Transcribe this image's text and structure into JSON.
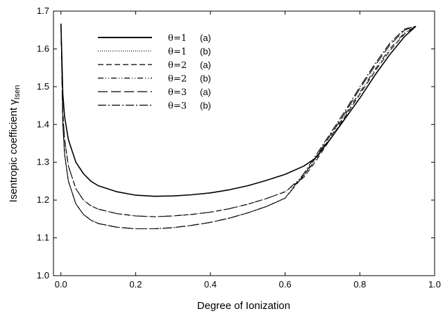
{
  "chart_data": {
    "type": "line",
    "title": "",
    "xlabel": "Degree of Ionization",
    "ylabel": "Isentropic coefficient γ",
    "ylabel_subscript": "Isen",
    "xlim": [
      -0.02,
      1.0
    ],
    "ylim": [
      1.0,
      1.7
    ],
    "xticks": [
      "0.0",
      "0.2",
      "0.4",
      "0.6",
      "0.8",
      "1.0"
    ],
    "yticks": [
      "1.0",
      "1.1",
      "1.2",
      "1.3",
      "1.4",
      "1.5",
      "1.6",
      "1.7"
    ],
    "grid": false,
    "legend_position": "top-left",
    "series": [
      {
        "theta": "θ=1",
        "case": "(a)",
        "dash": "",
        "x": [
          0.0,
          0.005,
          0.01,
          0.02,
          0.04,
          0.06,
          0.08,
          0.1,
          0.15,
          0.2,
          0.25,
          0.3,
          0.35,
          0.4,
          0.45,
          0.5,
          0.55,
          0.6,
          0.65,
          0.68,
          0.72,
          0.76,
          0.8,
          0.84,
          0.88,
          0.92,
          0.95
        ],
        "y": [
          1.667,
          1.48,
          1.42,
          1.36,
          1.3,
          1.27,
          1.25,
          1.238,
          1.222,
          1.213,
          1.21,
          1.211,
          1.214,
          1.219,
          1.227,
          1.238,
          1.252,
          1.268,
          1.29,
          1.31,
          1.36,
          1.415,
          1.47,
          1.53,
          1.585,
          1.633,
          1.66
        ]
      },
      {
        "theta": "θ=1",
        "case": "(b)",
        "dash": "1,2",
        "x": [
          0.0,
          0.005,
          0.01,
          0.02,
          0.04,
          0.06,
          0.08,
          0.1,
          0.15,
          0.2,
          0.25,
          0.3,
          0.35,
          0.4,
          0.45,
          0.5,
          0.55,
          0.6,
          0.65,
          0.68,
          0.72,
          0.76,
          0.8,
          0.84,
          0.88,
          0.92,
          0.95
        ],
        "y": [
          1.667,
          1.48,
          1.42,
          1.36,
          1.3,
          1.27,
          1.25,
          1.238,
          1.222,
          1.213,
          1.21,
          1.211,
          1.214,
          1.219,
          1.227,
          1.238,
          1.252,
          1.268,
          1.29,
          1.31,
          1.36,
          1.415,
          1.47,
          1.53,
          1.585,
          1.633,
          1.66
        ]
      },
      {
        "theta": "θ=2",
        "case": "(a)",
        "dash": "8,4",
        "x": [
          0.0,
          0.005,
          0.01,
          0.02,
          0.04,
          0.06,
          0.08,
          0.1,
          0.15,
          0.2,
          0.25,
          0.3,
          0.35,
          0.4,
          0.45,
          0.5,
          0.55,
          0.6,
          0.65,
          0.68,
          0.72,
          0.76,
          0.8,
          0.84,
          0.88,
          0.92,
          0.95
        ],
        "y": [
          1.667,
          1.43,
          1.36,
          1.29,
          1.23,
          1.2,
          1.185,
          1.176,
          1.164,
          1.158,
          1.156,
          1.158,
          1.162,
          1.168,
          1.177,
          1.189,
          1.204,
          1.222,
          1.26,
          1.3,
          1.36,
          1.42,
          1.48,
          1.54,
          1.595,
          1.64,
          1.66
        ]
      },
      {
        "theta": "θ=2",
        "case": "(b)",
        "dash": "8,3,1,3,1,3",
        "x": [
          0.0,
          0.005,
          0.01,
          0.02,
          0.04,
          0.06,
          0.08,
          0.1,
          0.15,
          0.2,
          0.25,
          0.3,
          0.35,
          0.4,
          0.45,
          0.5,
          0.55,
          0.6,
          0.65,
          0.68,
          0.72,
          0.76,
          0.8,
          0.84,
          0.88,
          0.92,
          0.95
        ],
        "y": [
          1.667,
          1.43,
          1.36,
          1.29,
          1.23,
          1.2,
          1.185,
          1.176,
          1.164,
          1.158,
          1.156,
          1.158,
          1.162,
          1.168,
          1.177,
          1.189,
          1.204,
          1.222,
          1.265,
          1.305,
          1.365,
          1.425,
          1.485,
          1.545,
          1.6,
          1.643,
          1.66
        ]
      },
      {
        "theta": "θ=3",
        "case": "(a)",
        "dash": "14,5",
        "x": [
          0.0,
          0.005,
          0.01,
          0.02,
          0.04,
          0.06,
          0.08,
          0.1,
          0.15,
          0.2,
          0.25,
          0.3,
          0.35,
          0.4,
          0.45,
          0.5,
          0.55,
          0.6,
          0.65,
          0.68,
          0.72,
          0.76,
          0.8,
          0.84,
          0.88,
          0.92,
          0.95
        ],
        "y": [
          1.667,
          1.4,
          1.32,
          1.25,
          1.19,
          1.162,
          1.147,
          1.138,
          1.128,
          1.124,
          1.124,
          1.127,
          1.133,
          1.141,
          1.152,
          1.166,
          1.183,
          1.205,
          1.265,
          1.31,
          1.37,
          1.43,
          1.495,
          1.555,
          1.61,
          1.65,
          1.66
        ]
      },
      {
        "theta": "θ=3",
        "case": "(b)",
        "dash": "12,3,2,3",
        "x": [
          0.0,
          0.005,
          0.01,
          0.02,
          0.04,
          0.06,
          0.08,
          0.1,
          0.15,
          0.2,
          0.25,
          0.3,
          0.35,
          0.4,
          0.45,
          0.5,
          0.55,
          0.6,
          0.65,
          0.68,
          0.72,
          0.76,
          0.8,
          0.84,
          0.88,
          0.92,
          0.95
        ],
        "y": [
          1.667,
          1.4,
          1.32,
          1.25,
          1.19,
          1.162,
          1.147,
          1.138,
          1.128,
          1.124,
          1.124,
          1.127,
          1.133,
          1.141,
          1.152,
          1.166,
          1.183,
          1.205,
          1.27,
          1.315,
          1.375,
          1.435,
          1.5,
          1.56,
          1.615,
          1.653,
          1.66
        ]
      }
    ]
  }
}
